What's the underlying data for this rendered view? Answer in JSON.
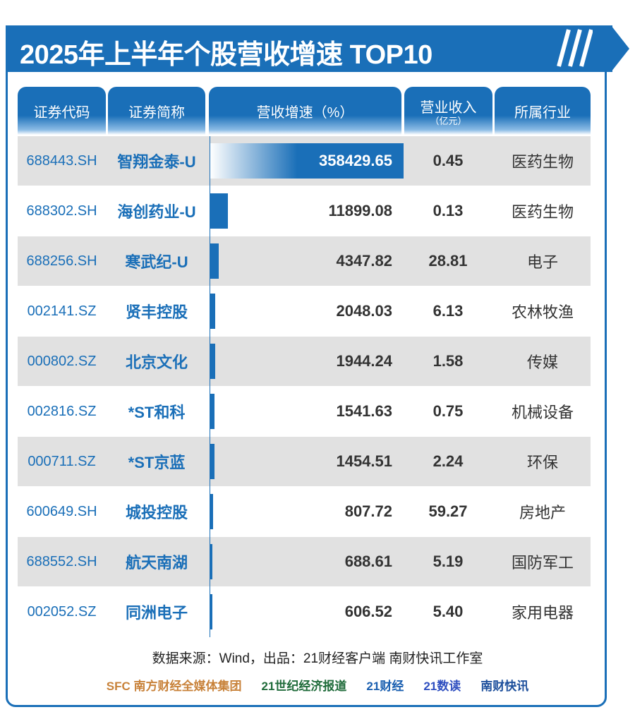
{
  "chart_data": {
    "type": "table",
    "title": "2025年上半年个股营收增速 TOP10",
    "columns": [
      "证券代码",
      "证券简称",
      "营收增速（%）",
      "营业收入",
      "所属行业"
    ],
    "revenue_unit": "（亿元）",
    "rows": [
      {
        "code": "688443.SH",
        "name": "智翔金泰-U",
        "growth": "358429.65",
        "revenue": "0.45",
        "industry": "医药生物"
      },
      {
        "code": "688302.SH",
        "name": "海创药业-U",
        "growth": "11899.08",
        "revenue": "0.13",
        "industry": "医药生物"
      },
      {
        "code": "688256.SH",
        "name": "寒武纪-U",
        "growth": "4347.82",
        "revenue": "28.81",
        "industry": "电子"
      },
      {
        "code": "002141.SZ",
        "name": "贤丰控股",
        "growth": "2048.03",
        "revenue": "6.13",
        "industry": "农林牧渔"
      },
      {
        "code": "000802.SZ",
        "name": "北京文化",
        "growth": "1944.24",
        "revenue": "1.58",
        "industry": "传媒"
      },
      {
        "code": "002816.SZ",
        "name": "*ST和科",
        "growth": "1541.63",
        "revenue": "0.75",
        "industry": "机械设备"
      },
      {
        "code": "000711.SZ",
        "name": "*ST京蓝",
        "growth": "1454.51",
        "revenue": "2.24",
        "industry": "环保"
      },
      {
        "code": "600649.SH",
        "name": "城投控股",
        "growth": "807.72",
        "revenue": "59.27",
        "industry": "房地产"
      },
      {
        "code": "688552.SH",
        "name": "航天南湖",
        "growth": "688.61",
        "revenue": "5.19",
        "industry": "国防军工"
      },
      {
        "code": "002052.SZ",
        "name": "同洲电子",
        "growth": "606.52",
        "revenue": "5.40",
        "industry": "家用电器"
      }
    ],
    "bar_color": "#1a6fb8"
  },
  "footer": {
    "source": "数据来源：Wind，出品：21财经客户端 南财快讯工作室",
    "logos": [
      "SFC 南方财经全媒体集团",
      "21世纪经济报道",
      "21财经",
      "21数读",
      "南财快讯"
    ]
  }
}
